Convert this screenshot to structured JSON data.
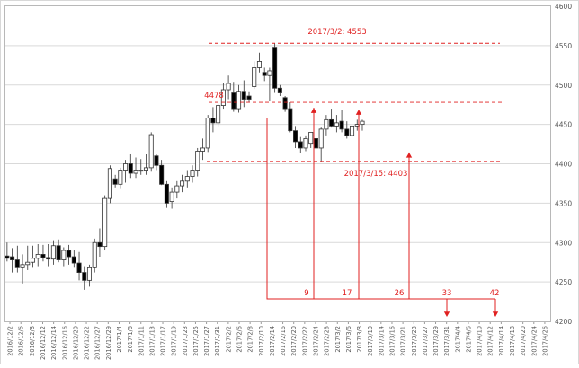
{
  "chart_data": {
    "type": "candlestick",
    "title": "",
    "xlabel": "",
    "ylabel": "",
    "ylim": [
      4200,
      4600
    ],
    "y_ticks": [
      4200,
      4250,
      4300,
      4350,
      4400,
      4450,
      4500,
      4550,
      4600
    ],
    "x_tick_labels": [
      "2016/12/2",
      "2016/12/6",
      "2016/12/8",
      "2016/12/12",
      "2016/12/14",
      "2016/12/16",
      "2016/12/20",
      "2016/12/22",
      "2016/12/27",
      "2016/12/29",
      "2017/1/4",
      "2017/1/6",
      "2017/1/11",
      "2017/1/13",
      "2017/1/17",
      "2017/1/19",
      "2017/1/23",
      "2017/1/25",
      "2017/1/27",
      "2017/1/31",
      "2017/2/2",
      "2017/2/6",
      "2017/2/8",
      "2017/2/10",
      "2017/2/14",
      "2017/2/16",
      "2017/2/20",
      "2017/2/22",
      "2017/2/24",
      "2017/2/28",
      "2017/3/2",
      "2017/3/6",
      "2017/3/8",
      "2017/3/10",
      "2017/3/14",
      "2017/3/16",
      "2017/3/21",
      "2017/3/23",
      "2017/3/27",
      "2017/3/29",
      "2017/3/31",
      "2017/4/4",
      "2017/4/6",
      "2017/4/10",
      "2017/4/12",
      "2017/4/14",
      "2017/4/18",
      "2017/4/20",
      "2017/4/24",
      "2017/4/26"
    ],
    "grid": true,
    "candles": [
      {
        "o": 4283,
        "h": 4300,
        "l": 4276,
        "c": 4280
      },
      {
        "o": 4282,
        "h": 4293,
        "l": 4262,
        "c": 4278
      },
      {
        "o": 4278,
        "h": 4296,
        "l": 4262,
        "c": 4268
      },
      {
        "o": 4268,
        "h": 4285,
        "l": 4248,
        "c": 4272
      },
      {
        "o": 4272,
        "h": 4296,
        "l": 4265,
        "c": 4275
      },
      {
        "o": 4275,
        "h": 4296,
        "l": 4268,
        "c": 4280
      },
      {
        "o": 4280,
        "h": 4298,
        "l": 4270,
        "c": 4285
      },
      {
        "o": 4285,
        "h": 4297,
        "l": 4276,
        "c": 4281
      },
      {
        "o": 4281,
        "h": 4298,
        "l": 4270,
        "c": 4279
      },
      {
        "o": 4279,
        "h": 4303,
        "l": 4272,
        "c": 4296
      },
      {
        "o": 4296,
        "h": 4304,
        "l": 4275,
        "c": 4278
      },
      {
        "o": 4278,
        "h": 4294,
        "l": 4270,
        "c": 4290
      },
      {
        "o": 4290,
        "h": 4297,
        "l": 4272,
        "c": 4282
      },
      {
        "o": 4282,
        "h": 4290,
        "l": 4268,
        "c": 4274
      },
      {
        "o": 4274,
        "h": 4288,
        "l": 4252,
        "c": 4262
      },
      {
        "o": 4262,
        "h": 4270,
        "l": 4240,
        "c": 4252
      },
      {
        "o": 4252,
        "h": 4272,
        "l": 4244,
        "c": 4268
      },
      {
        "o": 4268,
        "h": 4305,
        "l": 4262,
        "c": 4300
      },
      {
        "o": 4300,
        "h": 4318,
        "l": 4282,
        "c": 4295
      },
      {
        "o": 4295,
        "h": 4360,
        "l": 4290,
        "c": 4356
      },
      {
        "o": 4356,
        "h": 4398,
        "l": 4350,
        "c": 4394
      },
      {
        "o": 4381,
        "h": 4386,
        "l": 4370,
        "c": 4374
      },
      {
        "o": 4374,
        "h": 4395,
        "l": 4368,
        "c": 4392
      },
      {
        "o": 4392,
        "h": 4405,
        "l": 4376,
        "c": 4400
      },
      {
        "o": 4400,
        "h": 4412,
        "l": 4382,
        "c": 4388
      },
      {
        "o": 4388,
        "h": 4408,
        "l": 4382,
        "c": 4392
      },
      {
        "o": 4392,
        "h": 4406,
        "l": 4386,
        "c": 4392
      },
      {
        "o": 4392,
        "h": 4412,
        "l": 4386,
        "c": 4395
      },
      {
        "o": 4395,
        "h": 4440,
        "l": 4390,
        "c": 4437
      },
      {
        "o": 4410,
        "h": 4412,
        "l": 4392,
        "c": 4398
      },
      {
        "o": 4398,
        "h": 4405,
        "l": 4373,
        "c": 4374
      },
      {
        "o": 4374,
        "h": 4378,
        "l": 4344,
        "c": 4350
      },
      {
        "o": 4352,
        "h": 4370,
        "l": 4343,
        "c": 4364
      },
      {
        "o": 4364,
        "h": 4378,
        "l": 4356,
        "c": 4372
      },
      {
        "o": 4372,
        "h": 4386,
        "l": 4364,
        "c": 4378
      },
      {
        "o": 4378,
        "h": 4392,
        "l": 4370,
        "c": 4384
      },
      {
        "o": 4384,
        "h": 4398,
        "l": 4376,
        "c": 4392
      },
      {
        "o": 4392,
        "h": 4420,
        "l": 4384,
        "c": 4416
      },
      {
        "o": 4416,
        "h": 4432,
        "l": 4405,
        "c": 4420
      },
      {
        "o": 4420,
        "h": 4462,
        "l": 4415,
        "c": 4458
      },
      {
        "o": 4458,
        "h": 4472,
        "l": 4440,
        "c": 4452
      },
      {
        "o": 4452,
        "h": 4476,
        "l": 4446,
        "c": 4474
      },
      {
        "o": 4474,
        "h": 4502,
        "l": 4470,
        "c": 4494
      },
      {
        "o": 4494,
        "h": 4512,
        "l": 4482,
        "c": 4502
      },
      {
        "o": 4490,
        "h": 4504,
        "l": 4466,
        "c": 4470
      },
      {
        "o": 4470,
        "h": 4500,
        "l": 4465,
        "c": 4492
      },
      {
        "o": 4492,
        "h": 4506,
        "l": 4472,
        "c": 4482
      },
      {
        "o": 4486,
        "h": 4492,
        "l": 4478,
        "c": 4482
      },
      {
        "o": 4498,
        "h": 4530,
        "l": 4495,
        "c": 4522
      },
      {
        "o": 4522,
        "h": 4541,
        "l": 4516,
        "c": 4530
      },
      {
        "o": 4516,
        "h": 4522,
        "l": 4505,
        "c": 4512
      },
      {
        "o": 4512,
        "h": 4522,
        "l": 4480,
        "c": 4518
      },
      {
        "o": 4548,
        "h": 4553,
        "l": 4490,
        "c": 4496
      },
      {
        "o": 4496,
        "h": 4500,
        "l": 4486,
        "c": 4490
      },
      {
        "o": 4484,
        "h": 4486,
        "l": 4466,
        "c": 4470
      },
      {
        "o": 4470,
        "h": 4478,
        "l": 4440,
        "c": 4442
      },
      {
        "o": 4442,
        "h": 4448,
        "l": 4420,
        "c": 4428
      },
      {
        "o": 4428,
        "h": 4434,
        "l": 4414,
        "c": 4420
      },
      {
        "o": 4420,
        "h": 4436,
        "l": 4416,
        "c": 4432
      },
      {
        "o": 4426,
        "h": 4440,
        "l": 4420,
        "c": 4440
      },
      {
        "o": 4432,
        "h": 4436,
        "l": 4412,
        "c": 4420
      },
      {
        "o": 4420,
        "h": 4446,
        "l": 4403,
        "c": 4444
      },
      {
        "o": 4444,
        "h": 4462,
        "l": 4436,
        "c": 4456
      },
      {
        "o": 4456,
        "h": 4470,
        "l": 4446,
        "c": 4448
      },
      {
        "o": 4448,
        "h": 4462,
        "l": 4440,
        "c": 4452
      },
      {
        "o": 4454,
        "h": 4468,
        "l": 4440,
        "c": 4444
      },
      {
        "o": 4444,
        "h": 4454,
        "l": 4432,
        "c": 4436
      },
      {
        "o": 4436,
        "h": 4452,
        "l": 4432,
        "c": 4448
      },
      {
        "o": 4448,
        "h": 4456,
        "l": 4442,
        "c": 4450
      },
      {
        "o": 4450,
        "h": 4456,
        "l": 4442,
        "c": 4454
      }
    ],
    "hlines": [
      {
        "value": 4553,
        "label": "2017/3/2: 4553",
        "color": "#e02020"
      },
      {
        "value": 4478,
        "label": "4478",
        "color": "#e02020"
      },
      {
        "value": 4403,
        "label": "2017/3/15: 4403",
        "color": "#e02020"
      }
    ],
    "count_labels": [
      "9",
      "17",
      "26",
      "33",
      "42"
    ]
  }
}
